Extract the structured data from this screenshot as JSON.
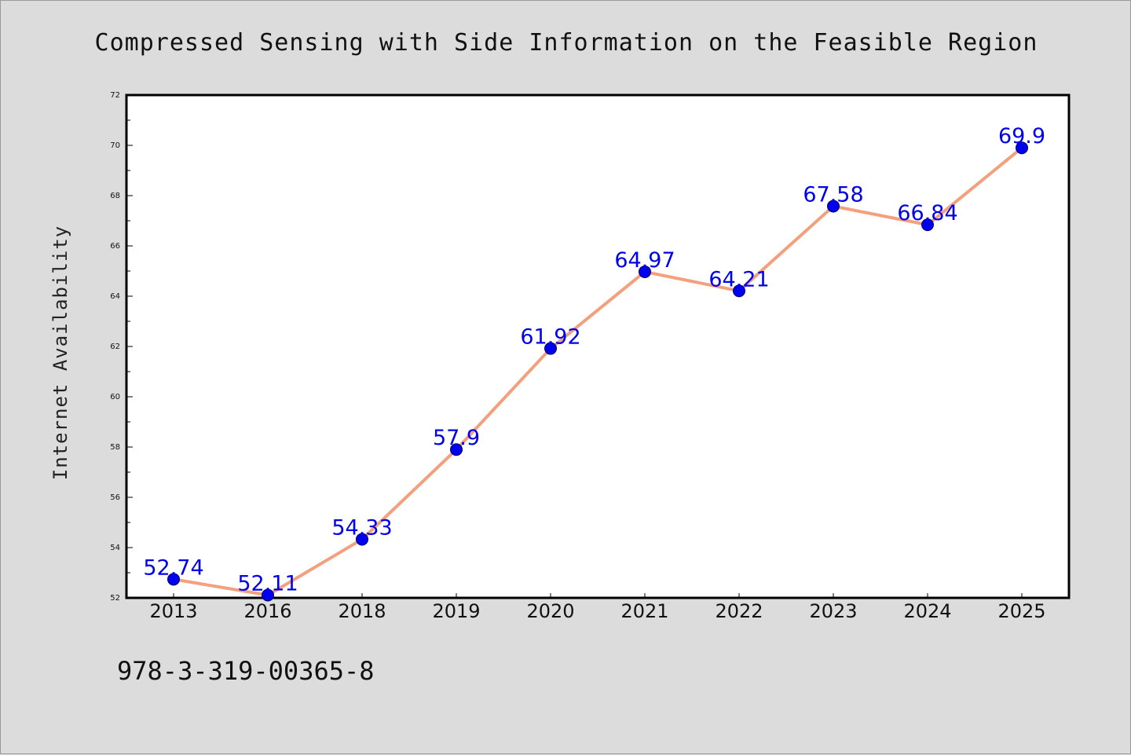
{
  "footer": {
    "isbn": "978-3-319-00365-8"
  },
  "colors": {
    "background": "#dcdcdc",
    "plot_background": "#ffffff",
    "line": "#f4a07c",
    "marker": "#0000ee",
    "data_label": "#0000ee",
    "axis": "#000000"
  },
  "chart_data": {
    "type": "line",
    "title": "Compressed Sensing with Side Information on the Feasible Region",
    "xlabel": "",
    "ylabel": "Internet Availability",
    "categories": [
      "2013",
      "2016",
      "2018",
      "2019",
      "2020",
      "2021",
      "2022",
      "2023",
      "2024",
      "2025"
    ],
    "series": [
      {
        "values": [
          52.74,
          52.11,
          54.33,
          57.9,
          61.92,
          64.97,
          64.21,
          67.58,
          66.84,
          69.9
        ]
      }
    ],
    "data_labels": [
      "52.74",
      "52.11",
      "54.33",
      "57.9",
      "61.92",
      "64.97",
      "64.21",
      "67.58",
      "66.84",
      "69.9"
    ],
    "ylim": [
      52,
      72
    ],
    "yticks": [
      52,
      54,
      56,
      58,
      60,
      62,
      64,
      66,
      68,
      70,
      72
    ],
    "grid": false,
    "legend": "none"
  }
}
